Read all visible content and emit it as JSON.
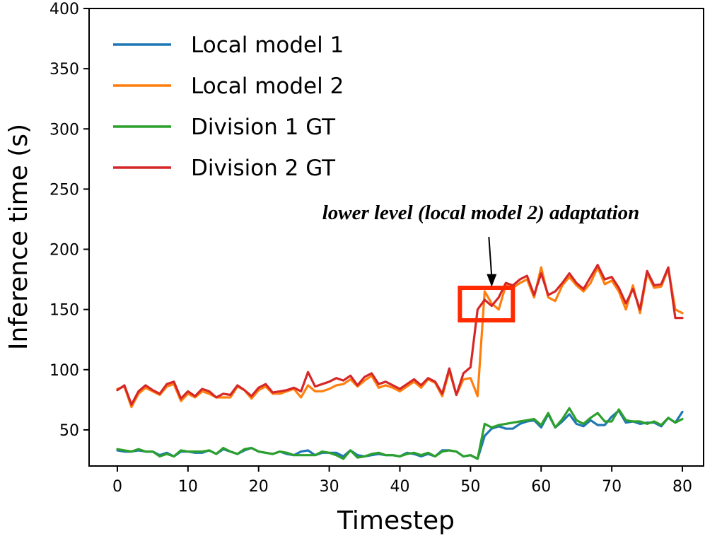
{
  "chart_data": {
    "type": "line",
    "title": "",
    "xlabel": "Timestep",
    "ylabel": "Inference time (s)",
    "xlim": [
      -4,
      83
    ],
    "ylim": [
      20,
      400
    ],
    "x_ticks": [
      0,
      10,
      20,
      30,
      40,
      50,
      60,
      70,
      80
    ],
    "y_ticks": [
      50,
      100,
      150,
      200,
      250,
      300,
      350,
      400
    ],
    "x_tick_labels": [
      "0",
      "10",
      "20",
      "30",
      "40",
      "50",
      "60",
      "70",
      "80"
    ],
    "y_tick_labels": [
      "50",
      "100",
      "150",
      "200",
      "250",
      "300",
      "350",
      "400"
    ],
    "legend_position": "top-left",
    "series": [
      {
        "name": "Local model 1",
        "color": "#1f77b4",
        "values": [
          33,
          32,
          32,
          33,
          32,
          32,
          29,
          31,
          28,
          32,
          32,
          31,
          31,
          33,
          30,
          34,
          32,
          30,
          33,
          35,
          32,
          31,
          30,
          32,
          30,
          29,
          32,
          33,
          29,
          31,
          31,
          31,
          28,
          33,
          29,
          28,
          29,
          30,
          29,
          29,
          28,
          31,
          30,
          28,
          30,
          28,
          33,
          33,
          32,
          28,
          29,
          26,
          45,
          51,
          53,
          51,
          51,
          55,
          57,
          58,
          52,
          63,
          52,
          57,
          63,
          55,
          53,
          58,
          54,
          54,
          61,
          66,
          56,
          57,
          55,
          56,
          56,
          53,
          60,
          56,
          65
        ]
      },
      {
        "name": "Local model 2",
        "color": "#ff7f0e",
        "values": [
          84,
          86,
          69,
          80,
          85,
          82,
          79,
          86,
          88,
          74,
          80,
          77,
          82,
          80,
          77,
          77,
          77,
          86,
          83,
          76,
          83,
          86,
          80,
          80,
          82,
          84,
          77,
          87,
          82,
          82,
          84,
          87,
          88,
          92,
          86,
          91,
          95,
          85,
          87,
          85,
          82,
          86,
          90,
          85,
          92,
          89,
          78,
          99,
          79,
          92,
          93,
          78,
          165,
          155,
          150,
          170,
          168,
          172,
          175,
          160,
          185,
          160,
          157,
          170,
          177,
          170,
          165,
          172,
          185,
          171,
          174,
          165,
          150,
          170,
          147,
          180,
          168,
          169,
          184,
          150,
          147
        ]
      },
      {
        "name": "Division 1 GT",
        "color": "#2ca02c",
        "values": [
          34,
          33,
          32,
          34,
          32,
          32,
          28,
          30,
          28,
          33,
          32,
          32,
          32,
          33,
          30,
          35,
          32,
          30,
          34,
          35,
          32,
          31,
          30,
          32,
          31,
          29,
          29,
          29,
          29,
          32,
          31,
          29,
          26,
          33,
          27,
          28,
          30,
          31,
          29,
          29,
          28,
          30,
          31,
          29,
          31,
          28,
          32,
          33,
          32,
          28,
          29,
          26,
          55,
          52,
          54,
          55,
          56,
          57,
          58,
          59,
          54,
          64,
          52,
          59,
          68,
          58,
          55,
          60,
          64,
          57,
          57,
          67,
          58,
          57,
          57,
          55,
          57,
          54,
          60,
          56,
          59
        ]
      },
      {
        "name": "Division 2 GT",
        "color": "#d62728",
        "values": [
          83,
          87,
          71,
          82,
          87,
          83,
          80,
          88,
          90,
          76,
          82,
          78,
          84,
          82,
          77,
          80,
          79,
          87,
          83,
          78,
          85,
          88,
          81,
          82,
          83,
          85,
          82,
          98,
          86,
          88,
          90,
          93,
          91,
          95,
          87,
          94,
          97,
          88,
          90,
          87,
          84,
          88,
          92,
          87,
          93,
          90,
          80,
          101,
          79,
          97,
          102,
          150,
          158,
          153,
          160,
          172,
          170,
          175,
          178,
          162,
          180,
          162,
          165,
          172,
          180,
          172,
          167,
          177,
          187,
          175,
          177,
          168,
          155,
          167,
          150,
          182,
          170,
          171,
          185,
          143,
          143
        ]
      }
    ],
    "annotations": [
      {
        "text": "lower level (local model 2) adaptation",
        "box_x": [
          48.5,
          56
        ],
        "box_y": [
          141,
          168
        ],
        "box_color": "#ff2a00",
        "arrow_target": [
          53,
          170
        ]
      }
    ]
  }
}
